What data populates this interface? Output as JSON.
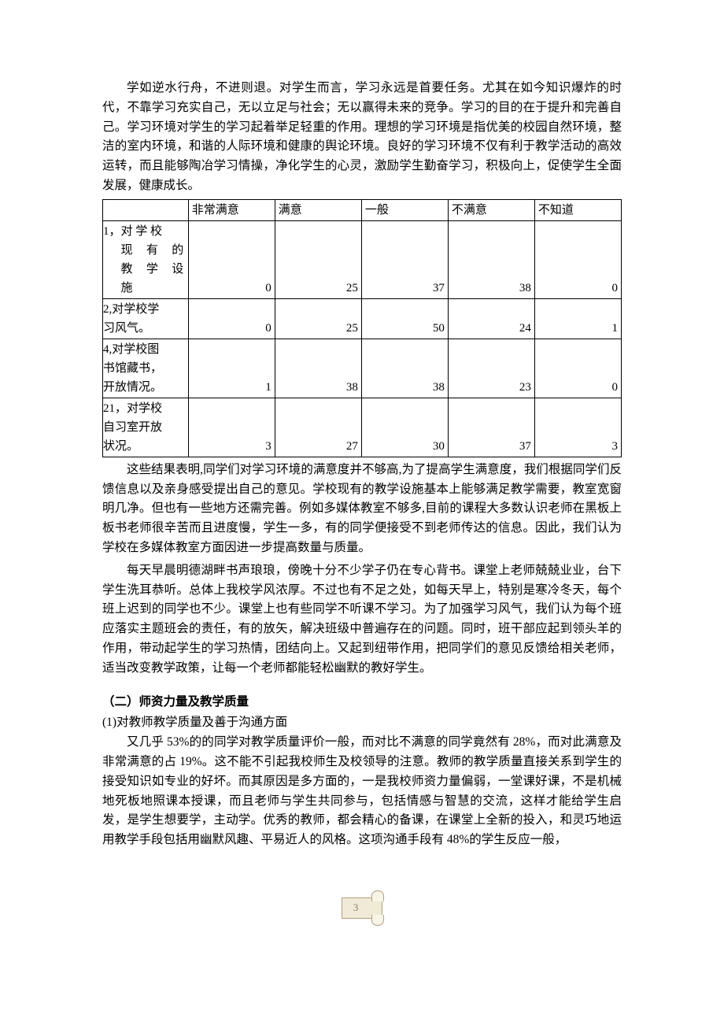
{
  "intro_paragraph": "学如逆水行舟，不进则退。对学生而言，学习永远是首要任务。尤其在如今知识爆炸的时代，不靠学习充实自己，无以立足与社会；无以赢得未来的竞争。学习的目的在于提升和完善自己。学习环境对学生的学习起着举足轻重的作用。理想的学习环境是指优美的校园自然环境，整洁的室内环境，和谐的人际环境和健康的舆论环境。良好的学习环境不仅有利于教学活动的高效运转，而且能够陶冶学习情操，净化学生的心灵，激励学生勤奋学习，积极向上，促使学生全面发展，健康成长。",
  "table": {
    "headers": [
      "",
      "非常满意",
      "满意",
      "一般",
      "不满意",
      "不知道"
    ],
    "rows": [
      {
        "label_lines": [
          "1，对 学 校",
          "现 有 的",
          "教 学 设",
          "施"
        ],
        "values": [
          0,
          25,
          37,
          38,
          0
        ]
      },
      {
        "label_lines": [
          "2,对学校学",
          "习风气。"
        ],
        "values": [
          0,
          25,
          50,
          24,
          1
        ]
      },
      {
        "label_lines": [
          "4,对学校图",
          "书馆藏书，",
          "开放情况。"
        ],
        "values": [
          1,
          38,
          38,
          23,
          0
        ]
      },
      {
        "label_lines": [
          "21，对学校",
          "自习室开放",
          "状况。"
        ],
        "values": [
          3,
          27,
          30,
          37,
          3
        ]
      }
    ]
  },
  "analysis_p1": "这些结果表明,同学们对学习环境的满意度并不够高,为了提高学生满意度，我们根据同学们反馈信息以及亲身感受提出自己的意见。学校现有的教学设施基本上能够满足教学需要，教室宽窗明几净。但也有一些地方还需完善。例如多媒体教室不够多,目前的课程大多数认识老师在黑板上板书老师很辛苦而且进度慢，学生一多，有的同学便接受不到老师传达的信息。因此，我们认为学校在多媒体教室方面因进一步提高数量与质量。",
  "analysis_p2": "每天早晨明德湖畔书声琅琅，傍晚十分不少学子仍在专心背书。课堂上老师兢兢业业，台下学生洗耳恭听。总体上我校学风浓厚。不过也有不足之处，如每天早上，特别是寒冷冬天，每个班上迟到的同学也不少。课堂上也有些同学不听课不学习。为了加强学习风气，我们认为每个班应落实主题班会的责任，有的放矢，解决班级中普遍存在的问题。同时，班干部应起到领头羊的作用，带动起学生的学习热情，团结向上。又起到纽带作用，把同学们的意见反馈给相关老师，适当改变教学政策，让每一个老师都能轻松幽默的教好学生。",
  "section2_heading": "（二）师资力量及教学质量",
  "section2_sub": "(1)对教师教学质量及善于沟通方面",
  "section2_p1": "又几乎 53%的的同学对教学质量评价一般，而对比不满意的同学竟然有 28%，而对此满意及非常满意的占 19%。这不能不引起我校师生及校领导的注意。教师的教学质量直接关系到学生的接受知识如专业的好坏。而其原因是多方面的，一是我校师资力量偏弱，一堂课好课，不是机械地死板地照课本授课，而且老师与学生共同参与，包括情感与智慧的交流，这样才能给学生启发，是学生想要学，主动学。优秀的教师，都会精心的备课，在课堂上全新的投入，和灵巧地运用教学手段包括用幽默风趣、平易近人的风格。这项沟通手段有 48%的学生反应一般，",
  "page_number": "3"
}
